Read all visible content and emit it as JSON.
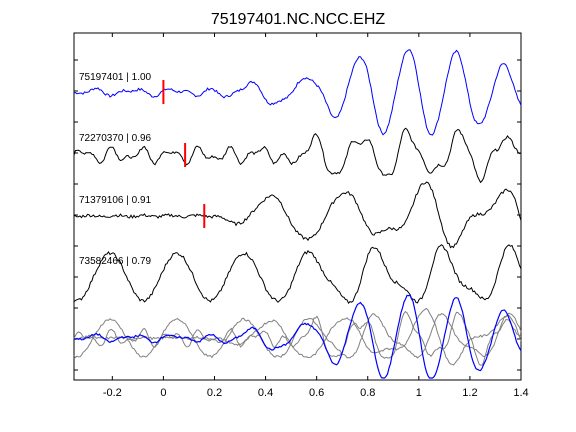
{
  "figure": {
    "title": "75197401.NC.NCC.EHZ"
  },
  "chart_data": {
    "type": "line",
    "title": "75197401.NC.NCC.EHZ",
    "xlabel": "",
    "ylabel": "",
    "xlim": [
      -0.35,
      1.4
    ],
    "xticks": [
      -0.2,
      0,
      0.2,
      0.4,
      0.6,
      0.8,
      1,
      1.2,
      1.4
    ],
    "xtick_labels": [
      "-0.2",
      "0",
      "0.2",
      "0.4",
      "0.6",
      "0.8",
      "1",
      "1.2",
      "1.4"
    ],
    "grid": false,
    "colors": {
      "reference": "#0000ff",
      "trace": "#000000",
      "overlay": "#808080",
      "pick": "#ff0000"
    },
    "series": [
      {
        "name": "75197401 | 1.00",
        "id": "75197401",
        "correlation": 1.0,
        "color": "#0000ff",
        "pick_time": 0.0
      },
      {
        "name": "72270370 | 0.96",
        "id": "72270370",
        "correlation": 0.96,
        "color": "#000000",
        "pick_time": 0.085
      },
      {
        "name": "71379106 | 0.91",
        "id": "71379106",
        "correlation": 0.91,
        "color": "#000000",
        "pick_time": 0.16
      },
      {
        "name": "73582466 | 0.79",
        "id": "73582466",
        "correlation": 0.79,
        "color": "#000000",
        "pick_time": null
      }
    ],
    "stack": {
      "description_visible": false,
      "reference_color": "#0000ff",
      "other_color": "#808080"
    }
  }
}
